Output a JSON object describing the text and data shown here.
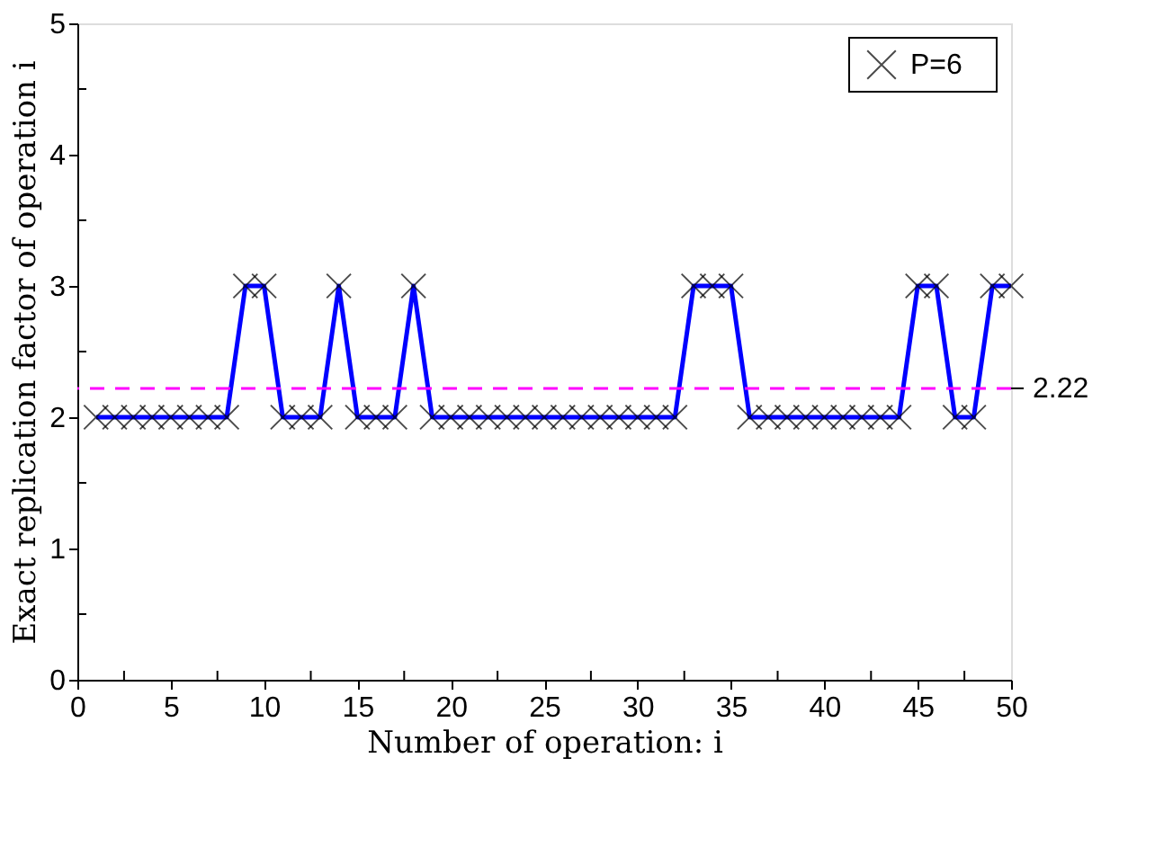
{
  "chart_data": {
    "type": "line",
    "xlabel": "Number of operation: i",
    "ylabel": "Exact replication factor of operation i",
    "x": [
      1,
      2,
      3,
      4,
      5,
      6,
      7,
      8,
      9,
      10,
      11,
      12,
      13,
      14,
      15,
      16,
      17,
      18,
      19,
      20,
      21,
      22,
      23,
      24,
      25,
      26,
      27,
      28,
      29,
      30,
      31,
      32,
      33,
      34,
      35,
      36,
      37,
      38,
      39,
      40,
      41,
      42,
      43,
      44,
      45,
      46,
      47,
      48,
      49,
      50
    ],
    "series": [
      {
        "name": "P=6",
        "color": "#0000ff",
        "values": [
          2,
          2,
          2,
          2,
          2,
          2,
          2,
          2,
          3,
          3,
          2,
          2,
          2,
          3,
          2,
          2,
          2,
          3,
          2,
          2,
          2,
          2,
          2,
          2,
          2,
          2,
          2,
          2,
          2,
          2,
          2,
          2,
          3,
          3,
          3,
          2,
          2,
          2,
          2,
          2,
          2,
          2,
          2,
          2,
          3,
          3,
          2,
          2,
          3,
          3
        ]
      }
    ],
    "marker": "cross",
    "legend": "top right",
    "grid": false,
    "xlim": [
      0,
      50
    ],
    "ylim": [
      0,
      5
    ],
    "xticks": [
      0,
      {
        "value": 2.5,
        "label": null
      },
      5,
      {
        "value": 7.5,
        "label": null
      },
      10,
      {
        "value": 12.5,
        "label": null
      },
      15,
      {
        "value": 17.5,
        "label": null
      },
      20,
      {
        "value": 22.5,
        "label": null
      },
      25,
      {
        "value": 27.5,
        "label": null
      },
      30,
      {
        "value": 32.5,
        "label": null
      },
      35,
      {
        "value": 37.5,
        "label": null
      },
      40,
      {
        "value": 42.5,
        "label": null
      },
      45,
      {
        "value": 47.5,
        "label": null
      },
      50
    ],
    "yticks": [
      0,
      {
        "value": 0.5,
        "label": null
      },
      1,
      {
        "value": 1.5,
        "label": null
      },
      2,
      {
        "value": 2.5,
        "label": null
      },
      3,
      {
        "value": 3.5,
        "label": null
      },
      4,
      {
        "value": 4.5,
        "label": null
      },
      5
    ],
    "ref_lines": [
      {
        "axis": "y",
        "value": 2.22,
        "label": "2.22",
        "color": "#ff00ff",
        "line_style": "dashed"
      }
    ]
  }
}
